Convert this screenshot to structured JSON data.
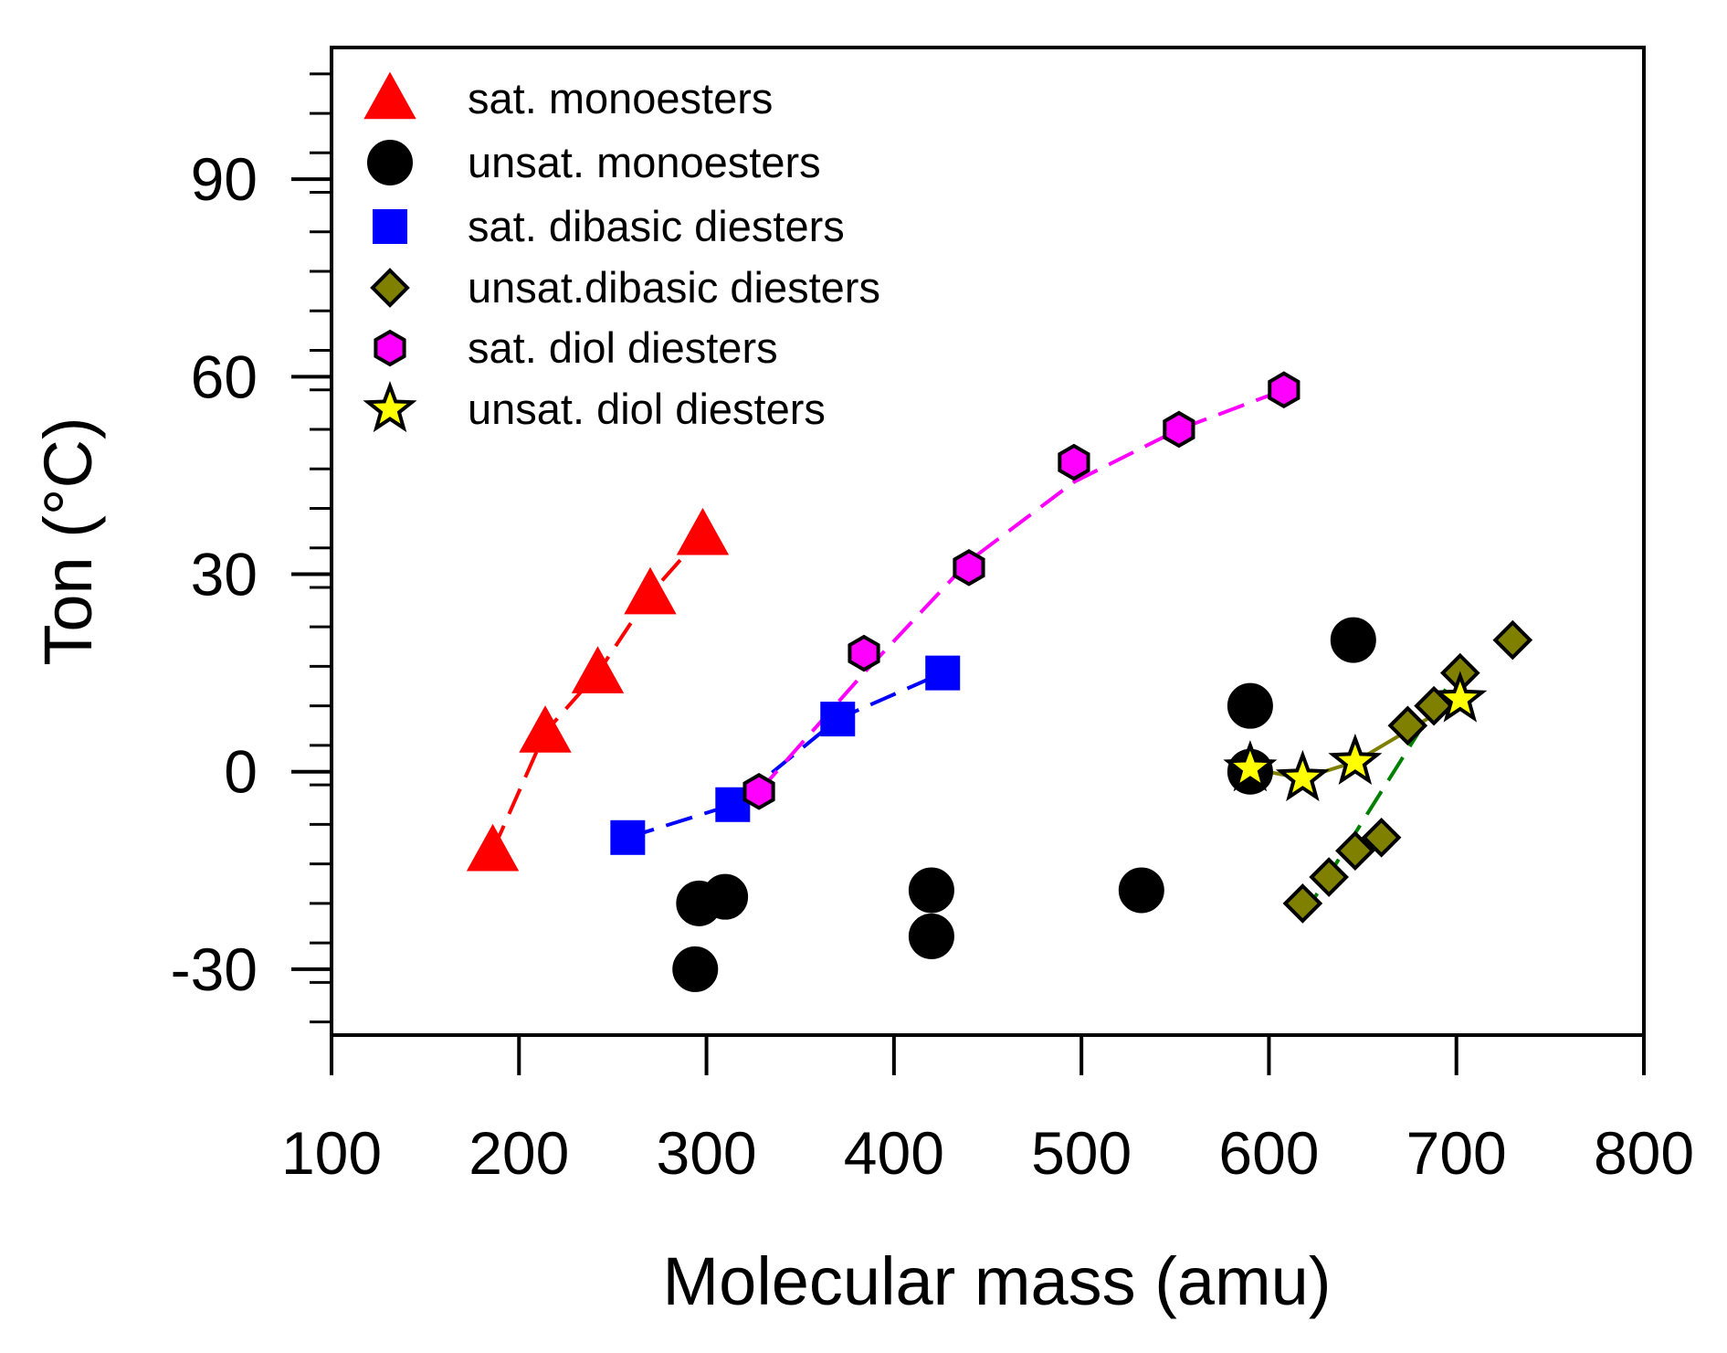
{
  "chart_data": {
    "type": "scatter",
    "title": "",
    "xlabel": "Molecular mass (amu)",
    "ylabel": "Ton (°C)",
    "xlim": [
      100,
      800
    ],
    "ylim": [
      -40,
      110
    ],
    "xticks": [
      100,
      200,
      300,
      400,
      500,
      600,
      700,
      800
    ],
    "xtick_labels": [
      "100",
      "200",
      "300",
      "400",
      "500",
      "600",
      "700",
      "800"
    ],
    "yticks": [
      -30,
      0,
      30,
      60,
      90
    ],
    "ytick_labels": [
      "-30",
      "0",
      "30",
      "60",
      "90"
    ],
    "y_minor_step": 6,
    "grid": false,
    "legend_position": "top-left",
    "series": [
      {
        "name": "sat. monoesters",
        "marker": "triangle",
        "color": "#ff0000",
        "stroke": "#ff0000",
        "x": [
          186,
          214,
          242,
          270,
          298
        ],
        "y": [
          -12,
          6,
          15,
          27,
          36
        ],
        "fit": {
          "style": "dashed",
          "color": "#ff0000",
          "x": [
            186,
            214,
            242,
            270,
            298
          ],
          "y": [
            -12,
            6,
            15,
            27,
            36
          ]
        }
      },
      {
        "name": "unsat. monoesters",
        "marker": "circle",
        "color": "#000000",
        "stroke": "#000000",
        "x": [
          294,
          296,
          310,
          420,
          420,
          532,
          590,
          590,
          645
        ],
        "y": [
          -30,
          -20,
          -19,
          -18,
          -25,
          -18,
          10,
          0,
          20
        ]
      },
      {
        "name": "sat. dibasic diesters",
        "marker": "square",
        "color": "#0000ff",
        "stroke": "#0000ff",
        "x": [
          258,
          314,
          370,
          426
        ],
        "y": [
          -10,
          -5,
          8,
          15
        ],
        "fit": {
          "style": "dashed",
          "color": "#0000ff",
          "x": [
            258,
            314,
            370,
            426
          ],
          "y": [
            -10,
            -5,
            8,
            15
          ]
        }
      },
      {
        "name": "unsat.dibasic diesters",
        "marker": "diamond",
        "color": "#808000",
        "stroke": "#000000",
        "x": [
          618,
          632,
          646,
          660,
          674,
          688,
          702,
          730
        ],
        "y": [
          -20,
          -16,
          -12,
          -10,
          7,
          10,
          15,
          20
        ],
        "fit": {
          "style": "dashed",
          "color": "#008000",
          "x": [
            618,
            702
          ],
          "y": [
            -22,
            16
          ]
        }
      },
      {
        "name": "sat. diol diesters",
        "marker": "hexagon",
        "color": "#ff00ff",
        "stroke": "#000000",
        "x": [
          328,
          384,
          440,
          496,
          552,
          608
        ],
        "y": [
          -3,
          18,
          31,
          47,
          52,
          58
        ],
        "fit": {
          "style": "dashed",
          "color": "#ff00ff",
          "x": [
            328,
            384,
            440,
            496,
            552,
            608
          ],
          "y": [
            -3,
            15,
            32,
            44,
            52,
            58
          ]
        }
      },
      {
        "name": "unsat. diol diesters",
        "marker": "star",
        "color": "#ffff00",
        "stroke": "#000000",
        "x": [
          590,
          618,
          646,
          702
        ],
        "y": [
          0.5,
          -1,
          1.5,
          11
        ],
        "fit": {
          "style": "solid",
          "color": "#808000",
          "x": [
            590,
            618,
            646,
            702
          ],
          "y": [
            0.5,
            -1,
            1.5,
            11
          ]
        }
      }
    ]
  }
}
